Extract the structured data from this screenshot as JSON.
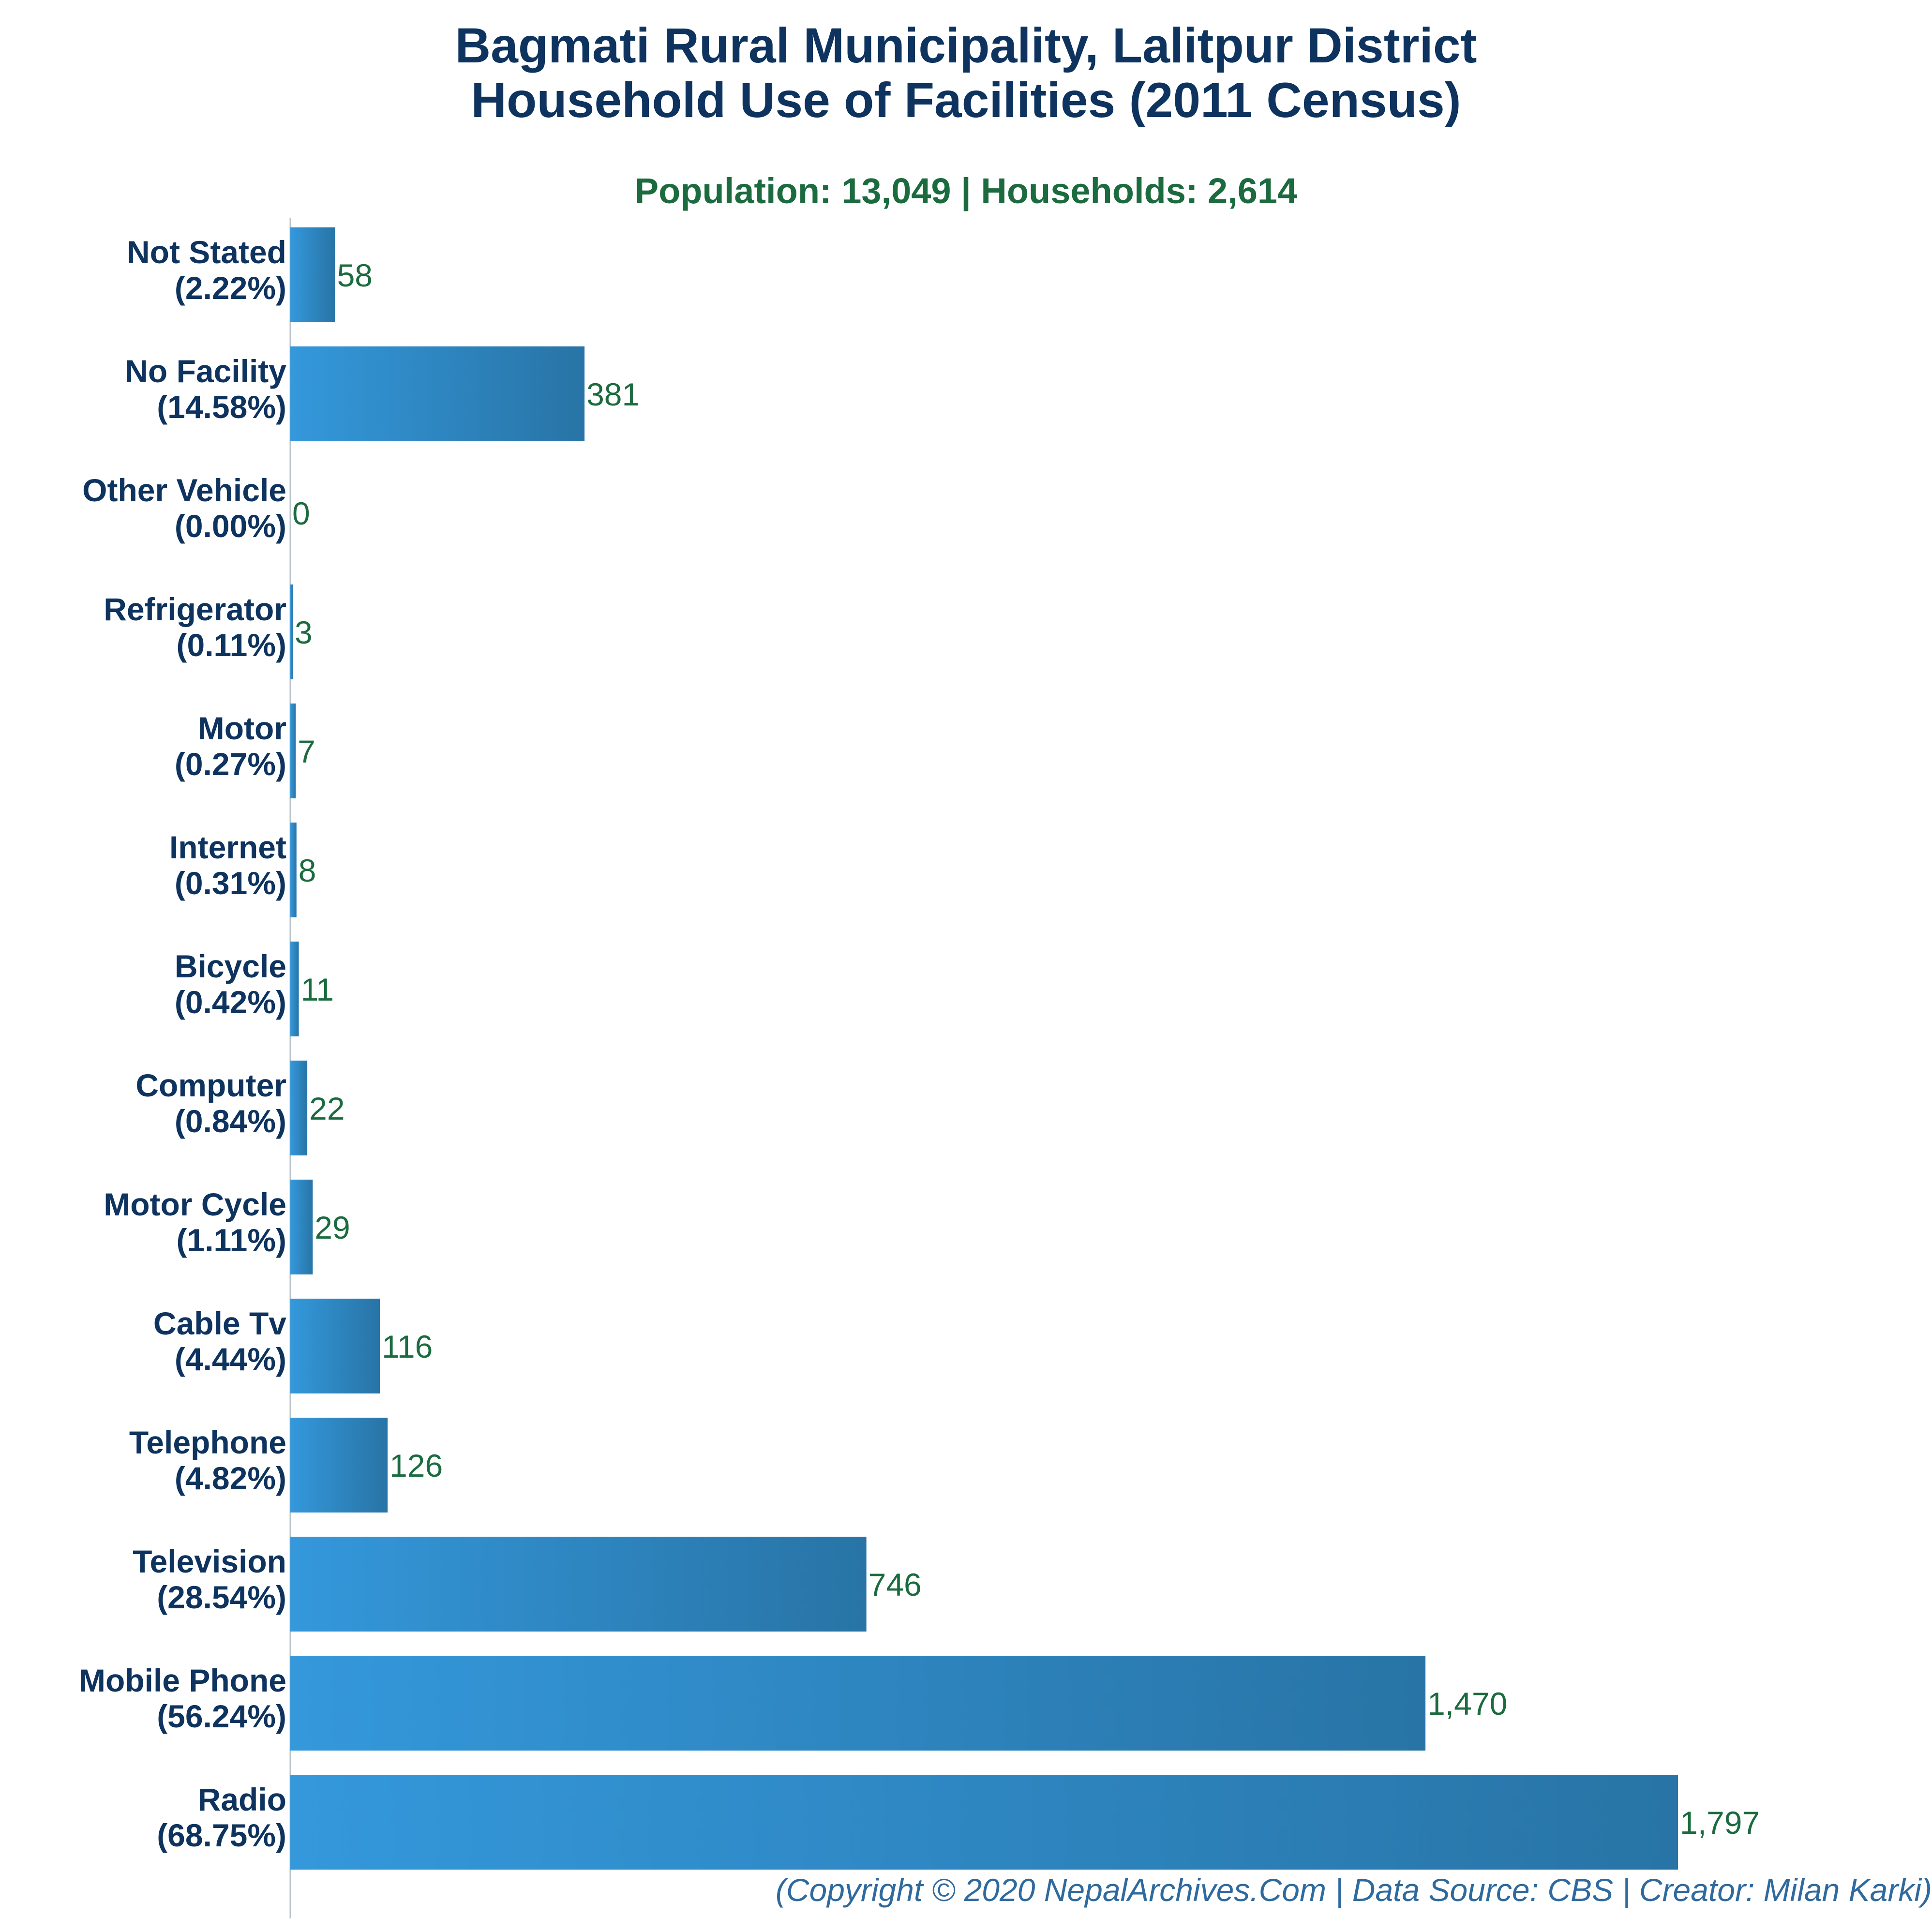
{
  "title_line1": "Bagmati Rural Municipality, Lalitpur District",
  "title_line2": "Household Use of Facilities (2011 Census)",
  "subtitle": "Population: 13,049 | Households: 2,614",
  "footer": "(Copyright © 2020 NepalArchives.Com | Data Source: CBS | Creator: Milan Karki)",
  "colors": {
    "bar_start": "#3498db",
    "bar_end": "#2874a6",
    "category_label": "#0d335e",
    "value_label": "#1b6b3f",
    "title": "#0d335e",
    "subtitle": "#1b6b3f",
    "footer": "#2f6a9e"
  },
  "chart_data": {
    "type": "bar",
    "orientation": "horizontal",
    "categories": [
      "Not Stated",
      "No Facility",
      "Other Vehicle",
      "Refrigerator",
      "Motor",
      "Internet",
      "Bicycle",
      "Computer",
      "Motor Cycle",
      "Cable Tv",
      "Telephone",
      "Television",
      "Mobile Phone",
      "Radio"
    ],
    "percent_labels": [
      "(2.22%)",
      "(14.58%)",
      "(0.00%)",
      "(0.11%)",
      "(0.27%)",
      "(0.31%)",
      "(0.42%)",
      "(0.84%)",
      "(1.11%)",
      "(4.44%)",
      "(4.82%)",
      "(28.54%)",
      "(56.24%)",
      "(68.75%)"
    ],
    "values": [
      58,
      381,
      0,
      3,
      7,
      8,
      11,
      22,
      29,
      116,
      126,
      746,
      1470,
      1797
    ],
    "value_labels": [
      "58",
      "381",
      "0",
      "3",
      "7",
      "8",
      "11",
      "22",
      "29",
      "116",
      "126",
      "746",
      "1,470",
      "1,797"
    ],
    "xlim": [
      0,
      1950
    ],
    "grid": false,
    "legend": "none"
  }
}
